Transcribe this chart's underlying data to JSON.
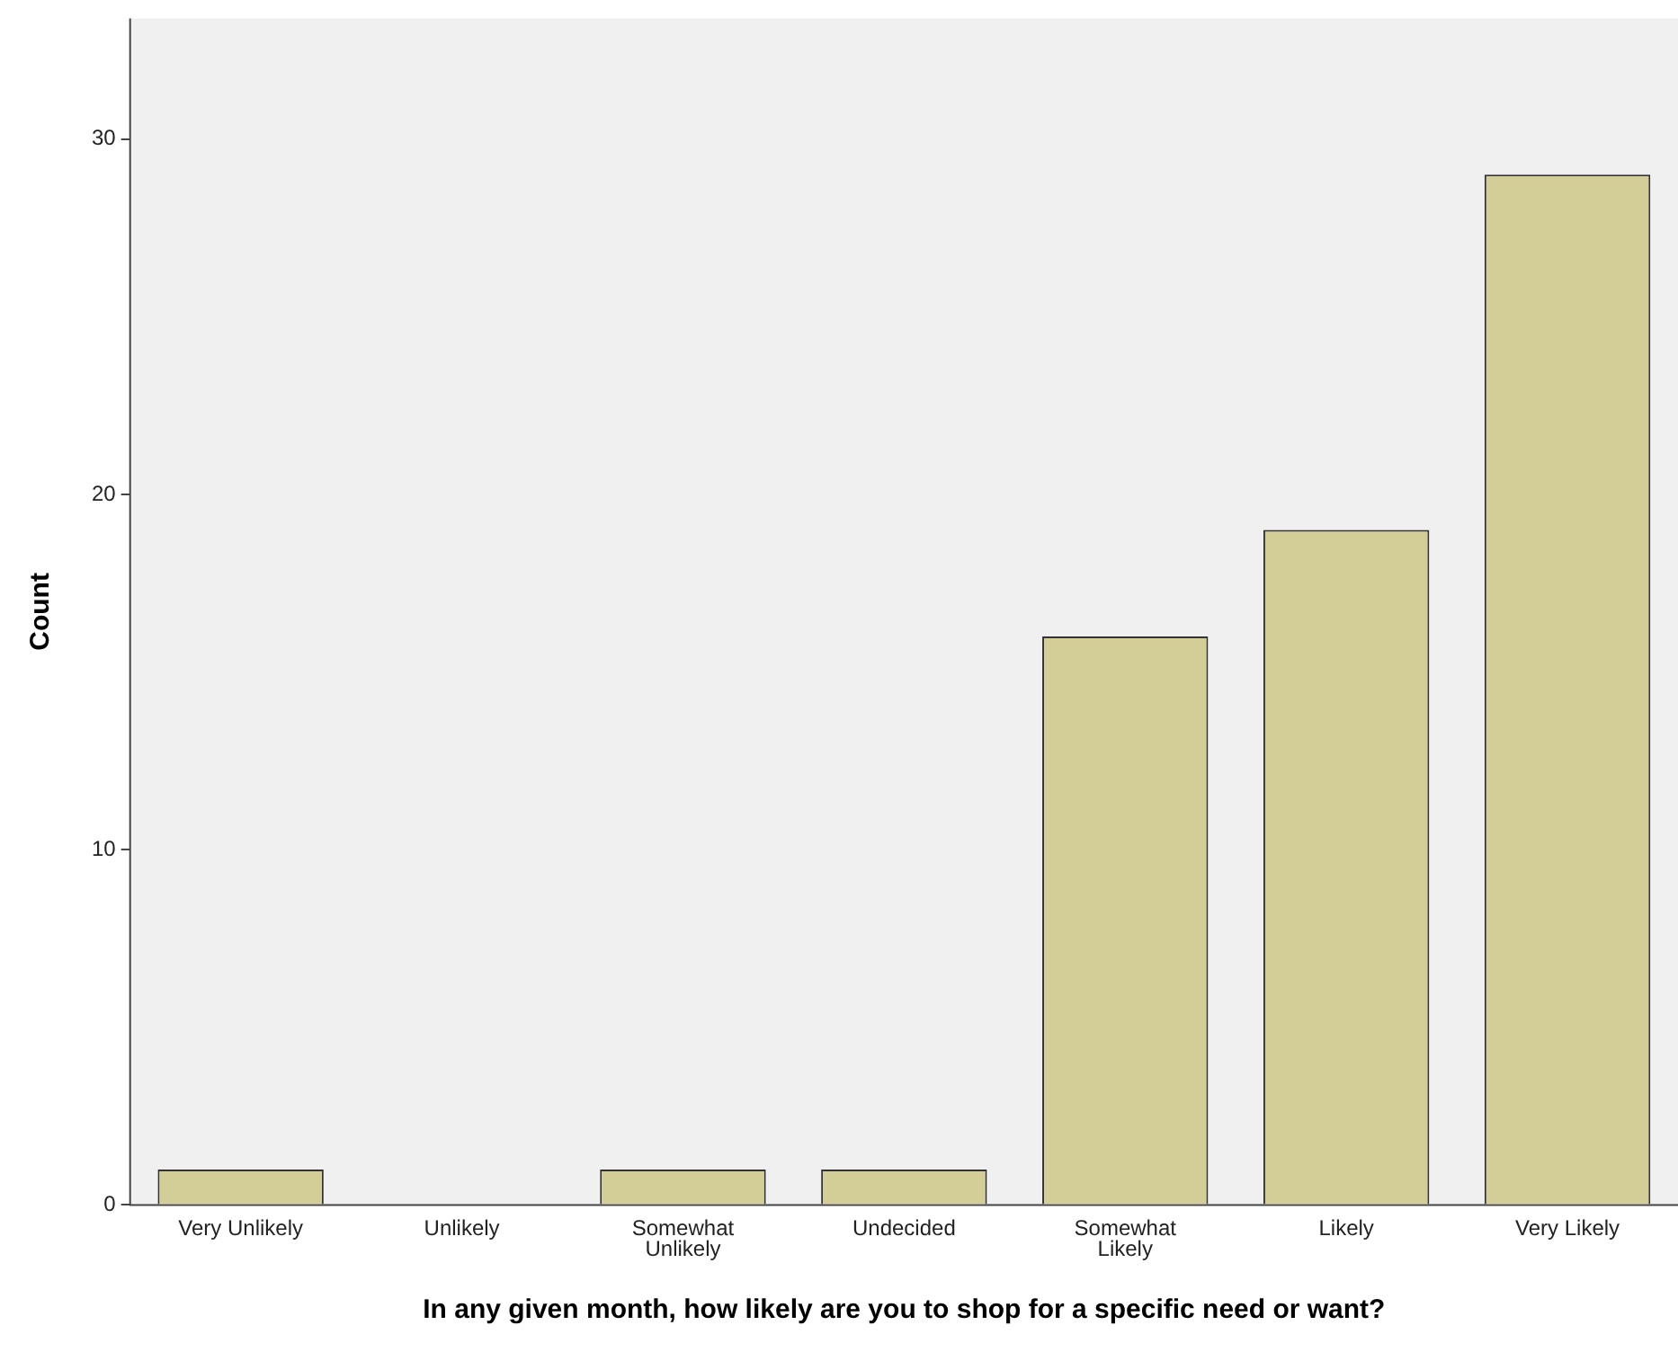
{
  "chart_data": {
    "type": "bar",
    "xlabel": "In any given month, how likely are you to shop for a specific need or want?",
    "ylabel": "Count",
    "categories": [
      "Very Unlikely",
      "Unlikely",
      "Somewhat Unlikely",
      "Undecided",
      "Somewhat Likely",
      "Likely",
      "Very Likely"
    ],
    "values": [
      1,
      0,
      1,
      1,
      16,
      19,
      29
    ],
    "color": "#d3ce98",
    "ylim": [
      0,
      33.4
    ],
    "yticks": [
      0,
      10,
      20,
      30
    ],
    "grid": false,
    "legend": false
  }
}
